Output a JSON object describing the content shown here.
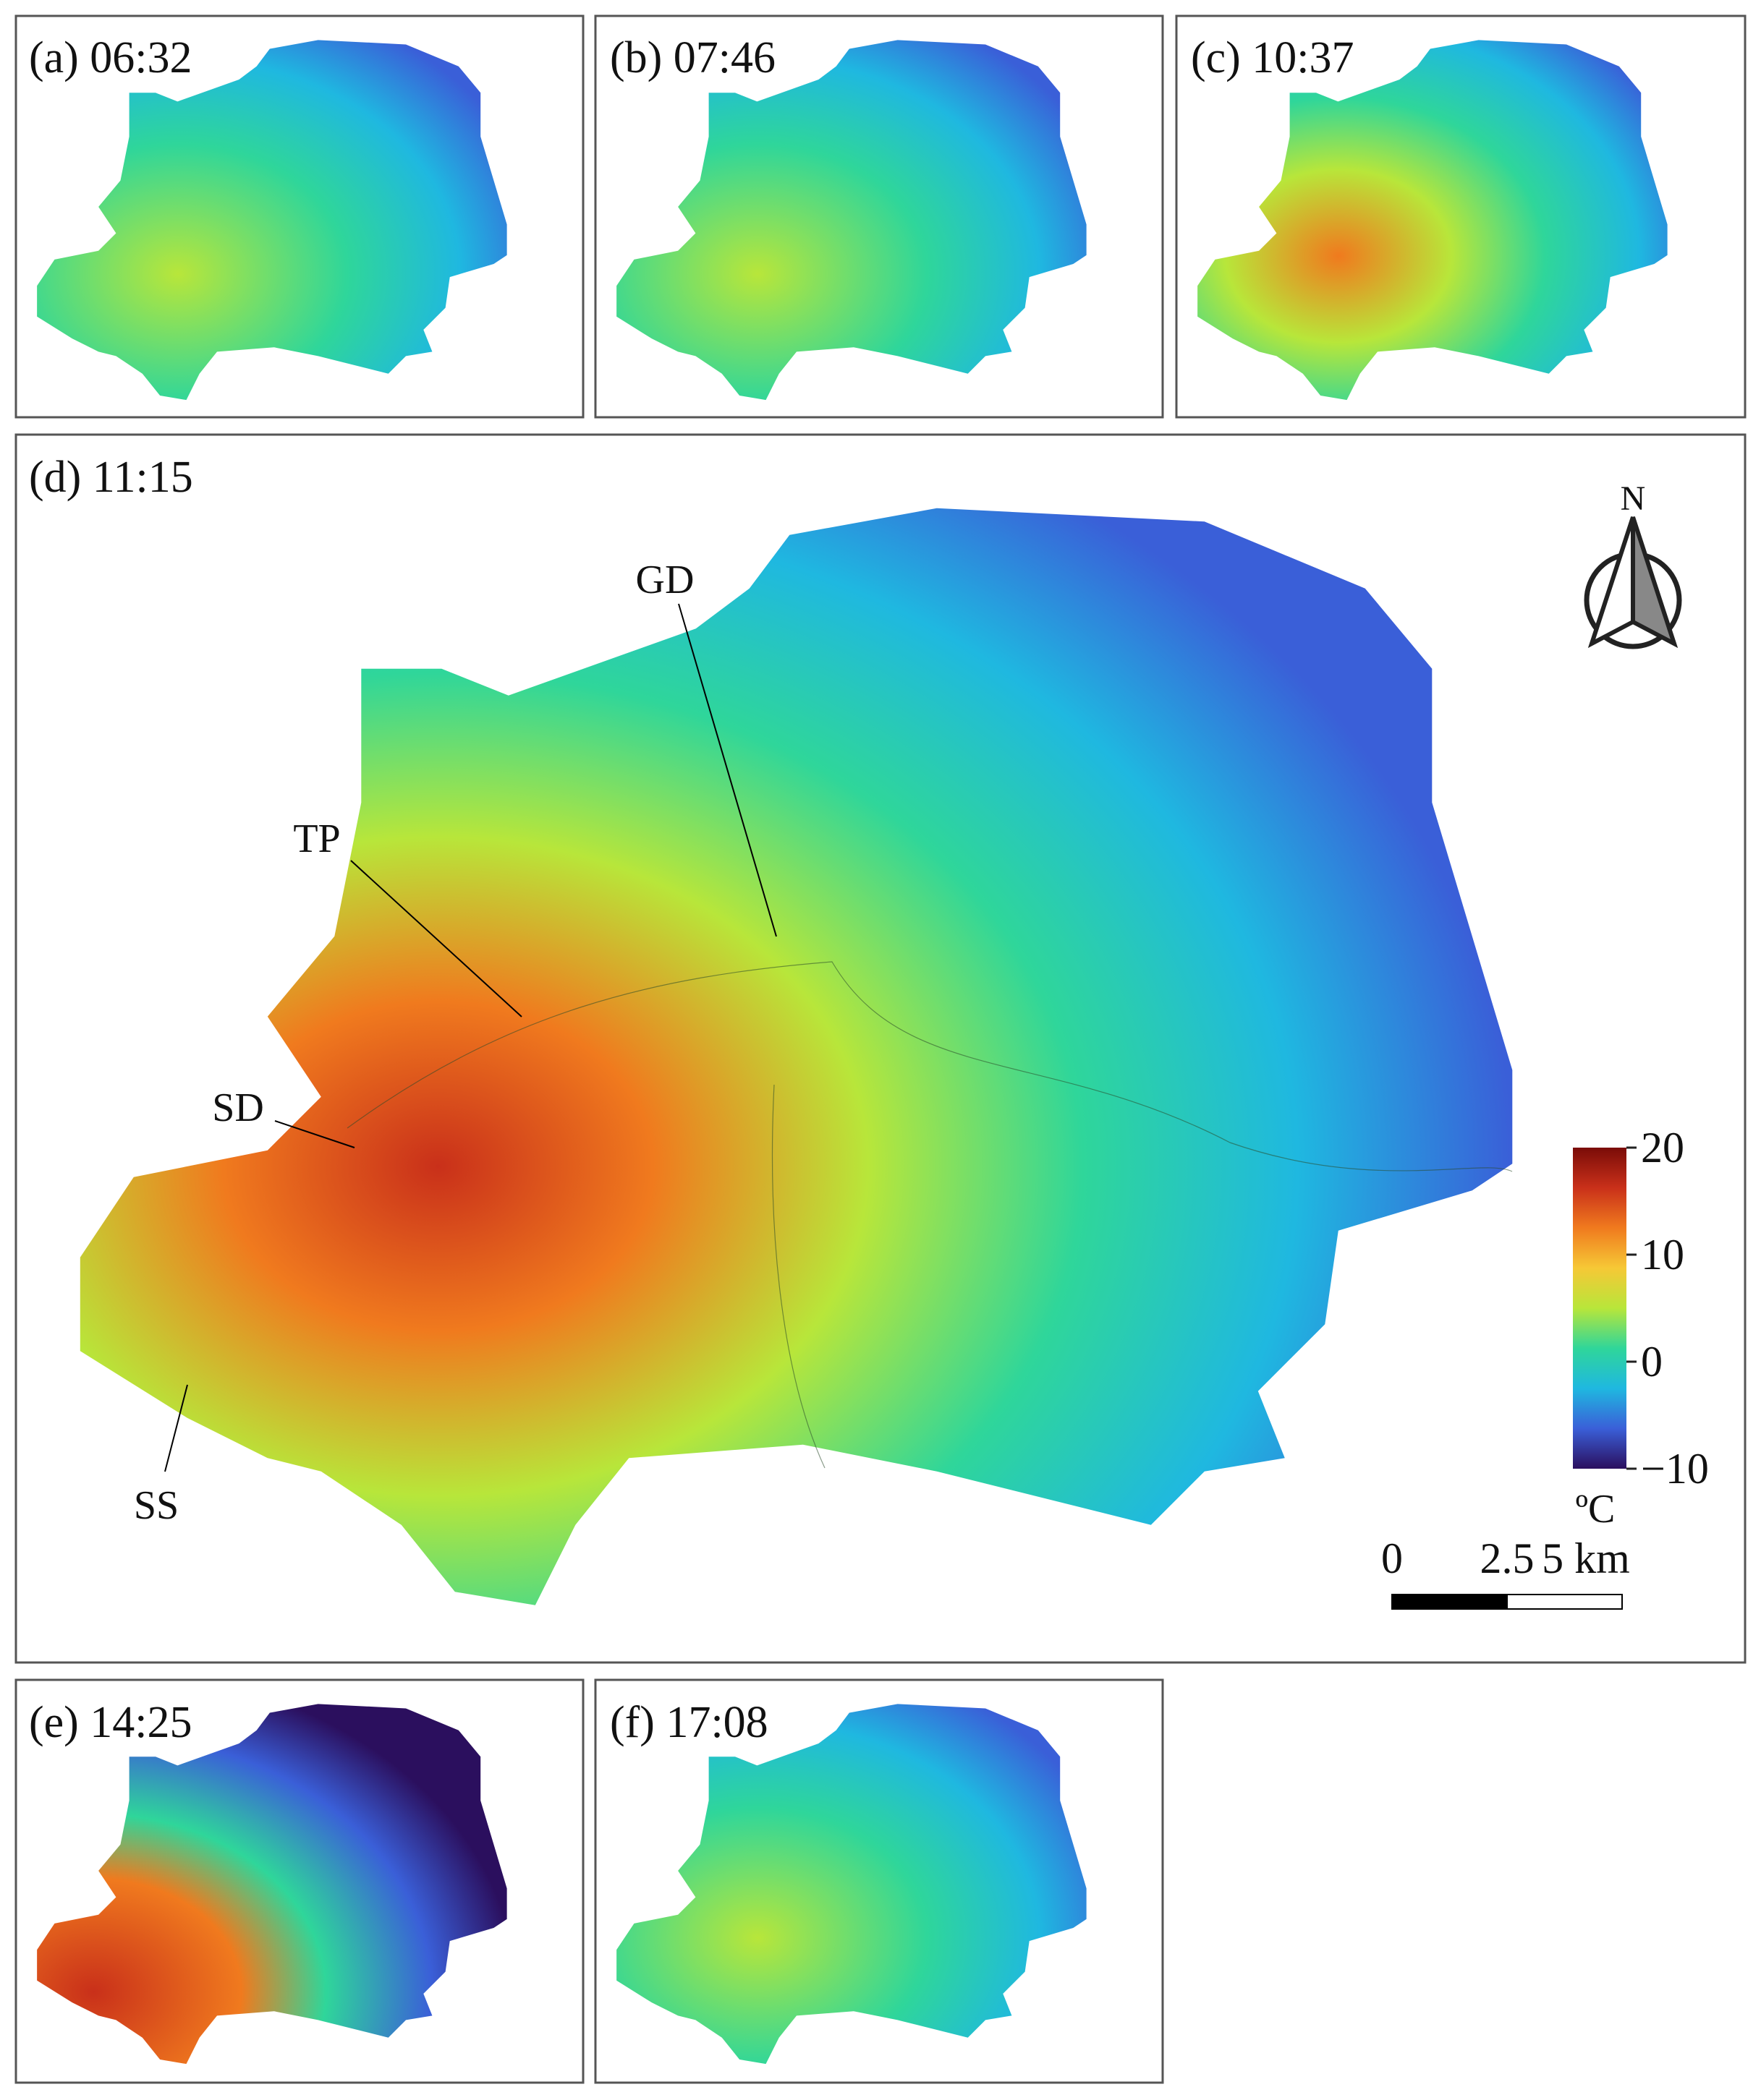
{
  "panels": [
    {
      "label": "(a) 06:32"
    },
    {
      "label": "(b) 07:46"
    },
    {
      "label": "(c) 10:37"
    },
    {
      "label": "(d) 11:15"
    },
    {
      "label": "(e) 14:25"
    },
    {
      "label": "(f) 17:08"
    }
  ],
  "annotations": [
    "GD",
    "TP",
    "SD",
    "SS"
  ],
  "north": "N",
  "colorbar": {
    "unit": "ºC",
    "lim": [
      -10,
      20
    ],
    "ticks": [
      20,
      10,
      0,
      {
        "value": -10,
        "label": "−10"
      }
    ],
    "colors": [
      "#2b0f5e",
      "#3a5fd8",
      "#1fb8e0",
      "#2fd69a",
      "#b8e63a",
      "#f6c836",
      "#f07a1e",
      "#c9301a",
      "#7a0c08"
    ]
  },
  "scalebar": {
    "lim": [
      0,
      5
    ],
    "ticks": [
      0,
      2.5,
      {
        "value": 5,
        "label": "5 km"
      }
    ]
  }
}
